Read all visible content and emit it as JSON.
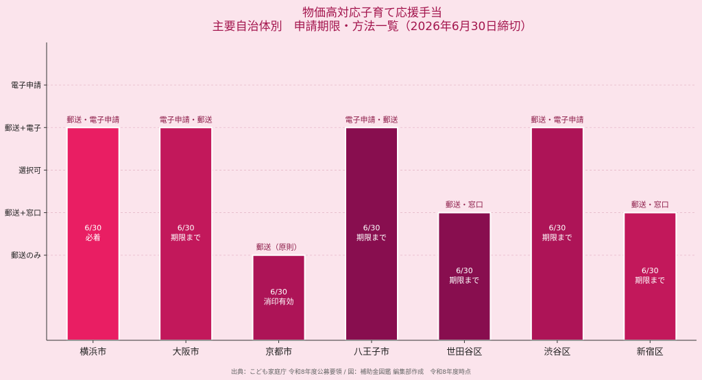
{
  "chart_data": {
    "type": "bar",
    "title": [
      "物価高対応子育て応援手当",
      "主要自治体別　申請期限・方法一覧（2026年6月30日締切）"
    ],
    "xlabel": "",
    "ylabel": "",
    "y_categories": [
      "郵送のみ",
      "郵送+窓口",
      "選択可",
      "郵送+電子",
      "電子申請"
    ],
    "ylim": [
      -1,
      6
    ],
    "grid": "horizontal-dashed",
    "categories": [
      "横浜市",
      "大阪市",
      "京都市",
      "八王子市",
      "世田谷区",
      "渋谷区",
      "新宿区"
    ],
    "values": [
      4,
      4,
      1,
      4,
      2,
      4,
      2
    ],
    "method_labels": [
      "郵送・電子申請",
      "電子申請・郵送",
      "郵送（原則）",
      "電子申請・郵送",
      "郵送・窓口",
      "郵送・電子申請",
      "郵送・窓口"
    ],
    "deadline_labels": [
      [
        "6/30",
        "必着"
      ],
      [
        "6/30",
        "期限まで"
      ],
      [
        "6/30",
        "消印有効"
      ],
      [
        "6/30",
        "期限まで"
      ],
      [
        "6/30",
        "期限まで"
      ],
      [
        "6/30",
        "期限まで"
      ],
      [
        "6/30",
        "期限まで"
      ]
    ],
    "colors": [
      "#e91e63",
      "#c2185b",
      "#ad1457",
      "#880e4f",
      "#880e4f",
      "#ad1457",
      "#c2185b"
    ],
    "source": "出典：こども家庭庁 令和8年度公募要領 / 図：補助金図鑑 編集部作成　令和8年度時点"
  }
}
